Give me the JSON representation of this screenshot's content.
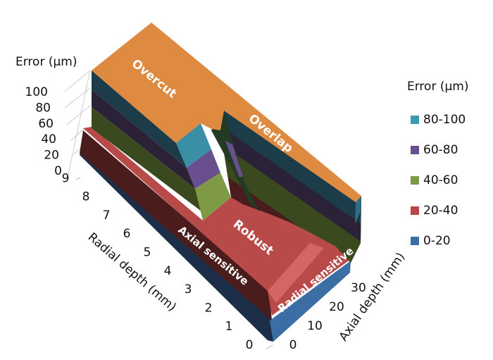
{
  "chart_data": {
    "type": "surface",
    "z_title": "Error (µm)",
    "x_title": "Radial depth (mm)",
    "y_title": "Axial depth (mm)",
    "z_ticks": [
      "0",
      "20",
      "40",
      "60",
      "80",
      "100"
    ],
    "x_ticks": [
      "0",
      "1",
      "2",
      "3",
      "4",
      "5",
      "6",
      "7",
      "8",
      "9"
    ],
    "y_ticks": [
      "0",
      "10",
      "20",
      "30"
    ],
    "zlim": [
      0,
      100
    ],
    "legend": {
      "title": "Error (µm)",
      "placement": "right",
      "entries": [
        {
          "label": "80-100",
          "color": "#3a9ab0"
        },
        {
          "label": "60-80",
          "color": "#6a4f8f"
        },
        {
          "label": "40-60",
          "color": "#7f9a45"
        },
        {
          "label": "20-40",
          "color": "#b84646"
        },
        {
          "label": "0-20",
          "color": "#3b6ea5"
        }
      ]
    },
    "annotations": [
      "Overcut",
      "Overlap",
      "Robust",
      "Axial sensitive",
      "Radial sensitive"
    ],
    "top_color": "#de8a40"
  }
}
